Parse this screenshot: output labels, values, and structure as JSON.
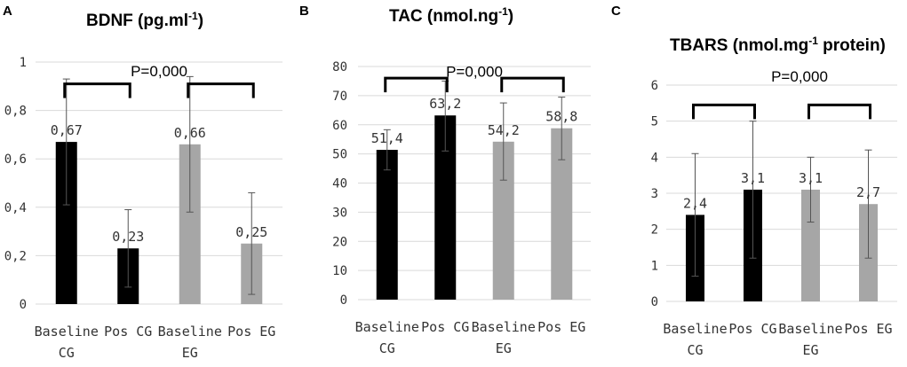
{
  "chart_data": [
    {
      "panel": "A",
      "type": "bar",
      "title": "BDNF (pg.ml",
      "title_sup": "-1",
      "title_end": ")",
      "categories": [
        [
          "Baseline",
          "CG"
        ],
        [
          "Pos CG"
        ],
        [
          "Baseline",
          "EG"
        ],
        [
          "Pos EG"
        ]
      ],
      "values": [
        0.67,
        0.23,
        0.66,
        0.25
      ],
      "value_labels": [
        "0,67",
        "0,23",
        "0,66",
        "0,25"
      ],
      "errors": [
        [
          0.41,
          0.93
        ],
        [
          0.07,
          0.39
        ],
        [
          0.38,
          0.94
        ],
        [
          0.04,
          0.46
        ]
      ],
      "bar_colors": [
        "#000000",
        "#000000",
        "#a6a6a6",
        "#a6a6a6"
      ],
      "ylim": [
        0,
        1
      ],
      "yticks": [
        0,
        0.2,
        0.4,
        0.6,
        0.8,
        1
      ],
      "ytick_labels": [
        "0",
        "0,2",
        "0,4",
        "0,6",
        "0,8",
        "1"
      ],
      "brackets": [
        [
          0,
          1,
          0.91
        ],
        [
          2,
          3,
          0.91
        ]
      ],
      "pvalue": "P=0,000",
      "pvalue_y": 0.97,
      "grid": true
    },
    {
      "panel": "B",
      "type": "bar",
      "title": "TAC (nmol.ng",
      "title_sup": "-1",
      "title_end": ")",
      "categories": [
        [
          "Baseline",
          "CG"
        ],
        [
          "Pos CG"
        ],
        [
          "Baseline",
          "EG"
        ],
        [
          "Pos EG"
        ]
      ],
      "values": [
        51.4,
        63.2,
        54.2,
        58.8
      ],
      "value_labels": [
        "51,4",
        "63,2",
        "54,2",
        "58,8"
      ],
      "errors": [
        [
          44.5,
          58.3
        ],
        [
          51.0,
          75.0
        ],
        [
          41.0,
          67.5
        ],
        [
          48.0,
          69.5
        ]
      ],
      "bar_colors": [
        "#000000",
        "#000000",
        "#a6a6a6",
        "#a6a6a6"
      ],
      "ylim": [
        0,
        80
      ],
      "yticks": [
        0,
        10,
        20,
        30,
        40,
        50,
        60,
        70,
        80
      ],
      "ytick_labels": [
        "0",
        "10",
        "20",
        "30",
        "40",
        "50",
        "60",
        "70",
        "80"
      ],
      "brackets": [
        [
          0,
          1,
          76
        ],
        [
          2,
          3,
          76
        ]
      ],
      "pvalue": "P=0,000",
      "pvalue_y": 79,
      "grid": true
    },
    {
      "panel": "C",
      "type": "bar",
      "title": "TBARS (nmol.mg",
      "title_sup": "-1",
      "title_end": " protein)",
      "categories": [
        [
          "Baseline",
          "CG"
        ],
        [
          "Pos CG"
        ],
        [
          "Baseline",
          "EG"
        ],
        [
          "Pos EG"
        ]
      ],
      "values": [
        2.4,
        3.1,
        3.1,
        2.7
      ],
      "value_labels": [
        "2,4",
        "3,1",
        "3,1",
        "2,7"
      ],
      "errors": [
        [
          0.7,
          4.1
        ],
        [
          1.2,
          5.0
        ],
        [
          2.2,
          4.0
        ],
        [
          1.2,
          4.2
        ]
      ],
      "bar_colors": [
        "#000000",
        "#000000",
        "#a6a6a6",
        "#a6a6a6"
      ],
      "ylim": [
        0,
        6
      ],
      "yticks": [
        0,
        1,
        2,
        3,
        4,
        5,
        6
      ],
      "ytick_labels": [
        "0",
        "1",
        "2",
        "3",
        "4",
        "5",
        "6"
      ],
      "brackets": [
        [
          0,
          1,
          5.45
        ],
        [
          2,
          3,
          5.45
        ]
      ],
      "pvalue": "P=0,000",
      "pvalue_y": 6.3,
      "grid": true
    }
  ]
}
